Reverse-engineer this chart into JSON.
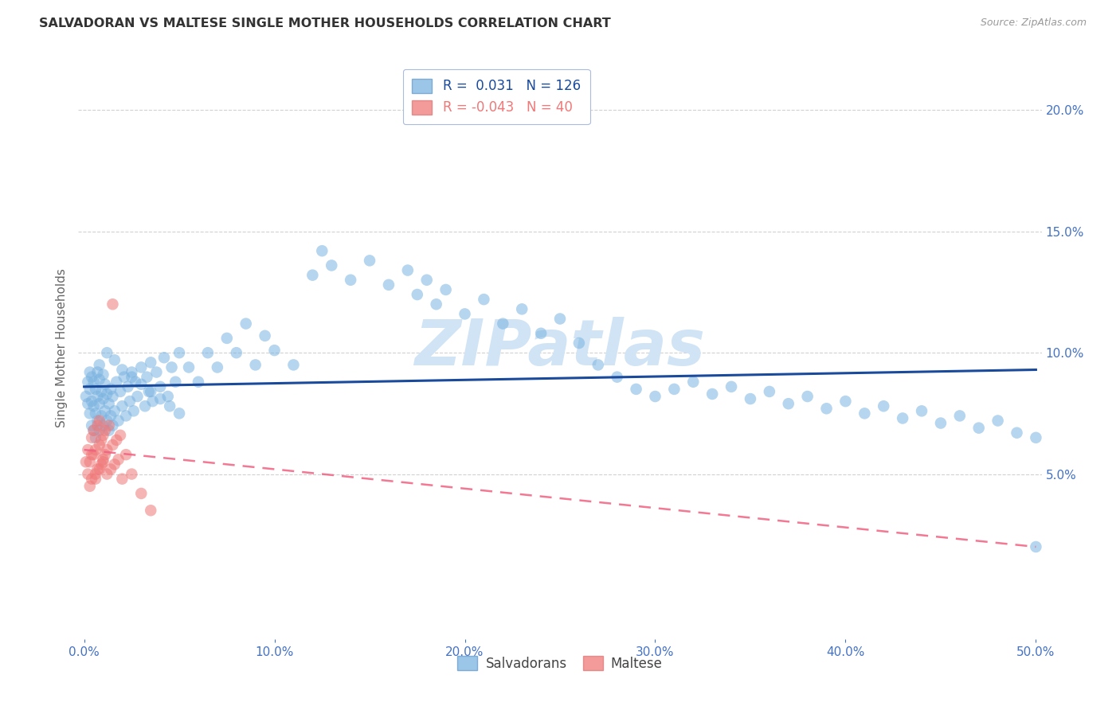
{
  "title": "SALVADORAN VS MALTESE SINGLE MOTHER HOUSEHOLDS CORRELATION CHART",
  "source": "Source: ZipAtlas.com",
  "ylabel": "Single Mother Households",
  "xlim": [
    -0.003,
    0.503
  ],
  "ylim": [
    -0.018,
    0.222
  ],
  "xlabel_vals": [
    0.0,
    0.1,
    0.2,
    0.3,
    0.4,
    0.5
  ],
  "xlabel_ticks": [
    "0.0%",
    "10.0%",
    "20.0%",
    "30.0%",
    "40.0%",
    "50.0%"
  ],
  "ylabel_vals": [
    0.05,
    0.1,
    0.15,
    0.2
  ],
  "ylabel_ticks": [
    "5.0%",
    "10.0%",
    "15.0%",
    "20.0%"
  ],
  "salvadorans_R": 0.031,
  "salvadorans_N": 126,
  "maltese_R": -0.043,
  "maltese_N": 40,
  "blue_color": "#7AB3E0",
  "pink_color": "#F07878",
  "blue_line_color": "#1A4A9C",
  "pink_line_color": "#F06080",
  "watermark_text": "ZIPatlas",
  "watermark_color": "#D0E4F5",
  "background_color": "#FFFFFF",
  "grid_color": "#CCCCCC",
  "tick_color": "#4472C4",
  "title_color": "#333333",
  "source_color": "#999999",
  "ylabel_color": "#666666",
  "legend_edge_color": "#AABBDD",
  "salv_trend_x": [
    0.0,
    0.5
  ],
  "salv_trend_y": [
    0.086,
    0.093
  ],
  "malt_trend_x": [
    0.0,
    0.5
  ],
  "malt_trend_y": [
    0.06,
    0.02
  ],
  "salvadorans_x": [
    0.001,
    0.002,
    0.002,
    0.003,
    0.003,
    0.003,
    0.004,
    0.004,
    0.004,
    0.005,
    0.005,
    0.005,
    0.006,
    0.006,
    0.006,
    0.007,
    0.007,
    0.007,
    0.008,
    0.008,
    0.008,
    0.009,
    0.009,
    0.01,
    0.01,
    0.01,
    0.011,
    0.011,
    0.012,
    0.012,
    0.013,
    0.013,
    0.014,
    0.014,
    0.015,
    0.015,
    0.016,
    0.017,
    0.018,
    0.019,
    0.02,
    0.021,
    0.022,
    0.023,
    0.024,
    0.025,
    0.026,
    0.027,
    0.028,
    0.03,
    0.032,
    0.033,
    0.034,
    0.035,
    0.036,
    0.038,
    0.04,
    0.042,
    0.044,
    0.046,
    0.048,
    0.05,
    0.055,
    0.06,
    0.065,
    0.07,
    0.075,
    0.08,
    0.085,
    0.09,
    0.095,
    0.1,
    0.11,
    0.12,
    0.125,
    0.13,
    0.14,
    0.15,
    0.16,
    0.17,
    0.175,
    0.18,
    0.185,
    0.19,
    0.2,
    0.21,
    0.22,
    0.23,
    0.24,
    0.25,
    0.26,
    0.27,
    0.28,
    0.29,
    0.3,
    0.31,
    0.32,
    0.33,
    0.34,
    0.35,
    0.36,
    0.37,
    0.38,
    0.39,
    0.4,
    0.41,
    0.42,
    0.43,
    0.44,
    0.45,
    0.46,
    0.47,
    0.48,
    0.49,
    0.5,
    0.5,
    0.008,
    0.012,
    0.016,
    0.02,
    0.025,
    0.03,
    0.035,
    0.04,
    0.045,
    0.05
  ],
  "salvadorans_y": [
    0.082,
    0.079,
    0.088,
    0.075,
    0.085,
    0.092,
    0.07,
    0.08,
    0.09,
    0.068,
    0.078,
    0.088,
    0.065,
    0.075,
    0.085,
    0.072,
    0.082,
    0.092,
    0.068,
    0.079,
    0.089,
    0.074,
    0.084,
    0.07,
    0.081,
    0.091,
    0.076,
    0.087,
    0.072,
    0.083,
    0.068,
    0.079,
    0.074,
    0.085,
    0.07,
    0.082,
    0.076,
    0.088,
    0.072,
    0.084,
    0.078,
    0.09,
    0.074,
    0.086,
    0.08,
    0.092,
    0.076,
    0.088,
    0.082,
    0.094,
    0.078,
    0.09,
    0.084,
    0.096,
    0.08,
    0.092,
    0.086,
    0.098,
    0.082,
    0.094,
    0.088,
    0.1,
    0.094,
    0.088,
    0.1,
    0.094,
    0.106,
    0.1,
    0.112,
    0.095,
    0.107,
    0.101,
    0.095,
    0.132,
    0.142,
    0.136,
    0.13,
    0.138,
    0.128,
    0.134,
    0.124,
    0.13,
    0.12,
    0.126,
    0.116,
    0.122,
    0.112,
    0.118,
    0.108,
    0.114,
    0.104,
    0.095,
    0.09,
    0.085,
    0.082,
    0.085,
    0.088,
    0.083,
    0.086,
    0.081,
    0.084,
    0.079,
    0.082,
    0.077,
    0.08,
    0.075,
    0.078,
    0.073,
    0.076,
    0.071,
    0.074,
    0.069,
    0.072,
    0.067,
    0.065,
    0.02,
    0.095,
    0.1,
    0.097,
    0.093,
    0.09,
    0.087,
    0.084,
    0.081,
    0.078,
    0.075
  ],
  "maltese_x": [
    0.001,
    0.002,
    0.002,
    0.003,
    0.003,
    0.004,
    0.004,
    0.005,
    0.005,
    0.006,
    0.006,
    0.007,
    0.007,
    0.008,
    0.008,
    0.009,
    0.009,
    0.01,
    0.01,
    0.011,
    0.011,
    0.012,
    0.012,
    0.013,
    0.014,
    0.015,
    0.016,
    0.017,
    0.018,
    0.019,
    0.02,
    0.022,
    0.025,
    0.03,
    0.035,
    0.015,
    0.01,
    0.008,
    0.006,
    0.004
  ],
  "maltese_y": [
    0.055,
    0.05,
    0.06,
    0.045,
    0.055,
    0.065,
    0.048,
    0.058,
    0.068,
    0.05,
    0.06,
    0.07,
    0.052,
    0.062,
    0.072,
    0.054,
    0.064,
    0.056,
    0.066,
    0.058,
    0.068,
    0.05,
    0.06,
    0.07,
    0.052,
    0.062,
    0.054,
    0.064,
    0.056,
    0.066,
    0.048,
    0.058,
    0.05,
    0.042,
    0.035,
    0.12,
    0.055,
    0.052,
    0.048,
    0.058
  ]
}
